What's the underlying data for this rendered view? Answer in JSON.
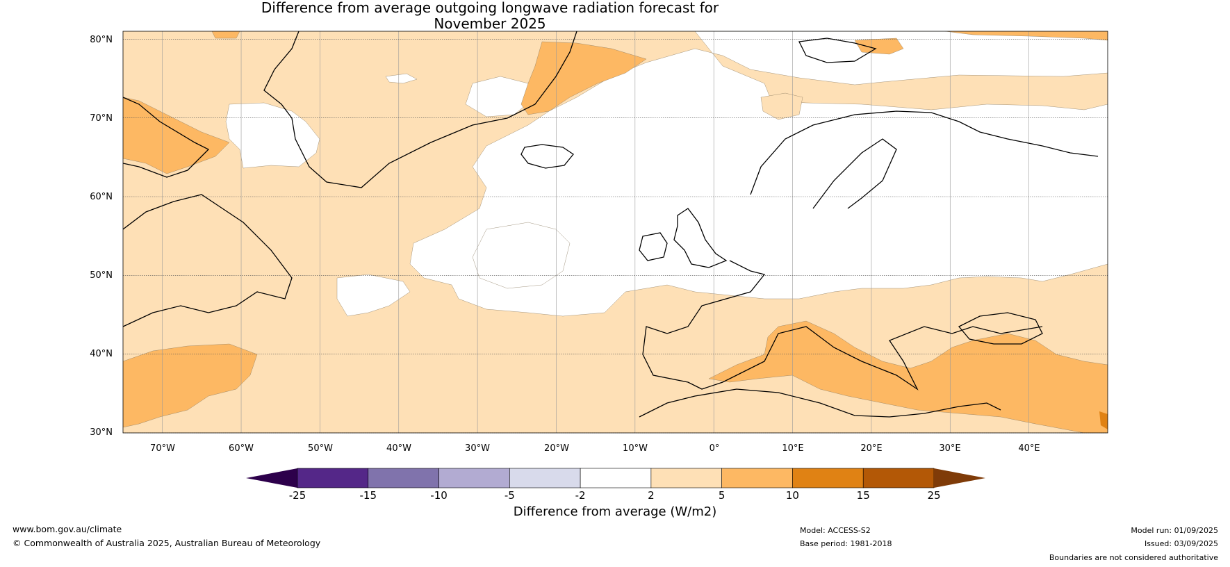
{
  "title_line1": "Difference from average outgoing longwave radiation forecast for",
  "title_line2": "November 2025",
  "latitude_labels": [
    "80°N",
    "70°N",
    "60°N",
    "50°N",
    "40°N",
    "30°N"
  ],
  "longitude_labels": [
    "70°W",
    "60°W",
    "50°W",
    "40°W",
    "30°W",
    "20°W",
    "10°W",
    "0°",
    "10°E",
    "20°E",
    "30°E",
    "40°E"
  ],
  "map": {
    "region": "North Atlantic and Europe",
    "lat_range": [
      30,
      81
    ],
    "lon_range": [
      -75,
      50
    ],
    "gridlines": true
  },
  "colorbar": {
    "label": "Difference from average (W/m2)",
    "ticks": [
      "-25",
      "-15",
      "-10",
      "-5",
      "-2",
      "2",
      "5",
      "10",
      "15",
      "25"
    ],
    "colors": [
      "#2d004b",
      "#542788",
      "#8073ac",
      "#b2abd2",
      "#d8daeb",
      "#ffffff",
      "#fee0b6",
      "#fdb863",
      "#e08214",
      "#b35806",
      "#7f3b08"
    ],
    "extend": "both"
  },
  "footer": {
    "website": "www.bom.gov.au/climate",
    "copyright": "© Commonwealth of Australia 2025, Australian Bureau of Meteorology",
    "model": "Model: ACCESS-S2",
    "base_period": "Base period: 1981-2018",
    "model_run": "Model run: 01/09/2025",
    "issued": "Issued: 03/09/2025",
    "disclaimer": "Boundaries are not considered authoritative"
  }
}
